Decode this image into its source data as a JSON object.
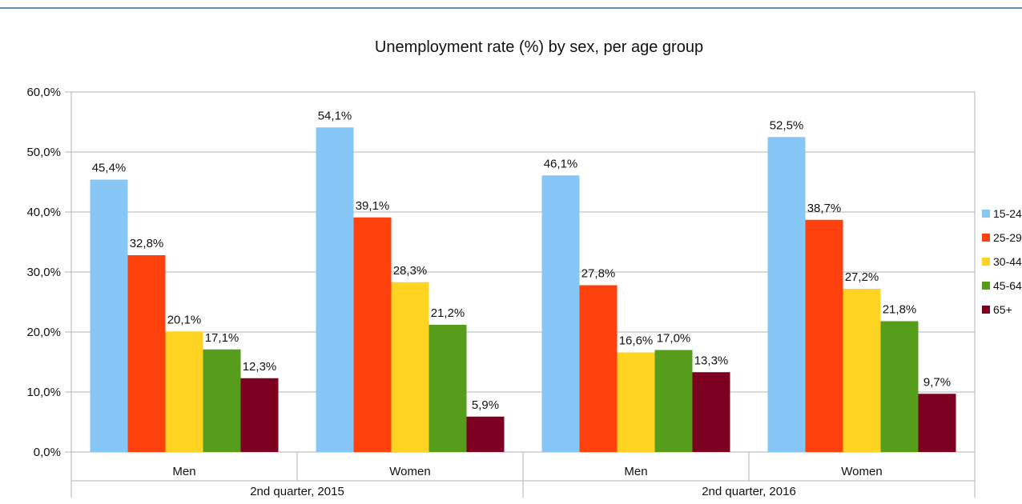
{
  "chart_data": {
    "type": "bar",
    "title": "Unemployment rate (%) by sex, per age group",
    "groups": [
      {
        "label": "2nd quarter, 2015",
        "categories": [
          "Men",
          "Women"
        ]
      },
      {
        "label": "2nd quarter, 2016",
        "categories": [
          "Men",
          "Women"
        ]
      }
    ],
    "categories": [
      "Men",
      "Women",
      "Men",
      "Women"
    ],
    "series": [
      {
        "name": "15-24",
        "color": "#87c7f6",
        "values": [
          45.4,
          54.1,
          46.1,
          52.5
        ],
        "labels": [
          "45,4%",
          "54,1%",
          "46,1%",
          "52,5%"
        ]
      },
      {
        "name": "25-29",
        "color": "#ff410d",
        "values": [
          32.8,
          39.1,
          27.8,
          38.7
        ],
        "labels": [
          "32,8%",
          "39,1%",
          "27,8%",
          "38,7%"
        ]
      },
      {
        "name": "30-44",
        "color": "#ffd321",
        "values": [
          20.1,
          28.3,
          16.6,
          27.2
        ],
        "labels": [
          "20,1%",
          "28,3%",
          "16,6%",
          "27,2%"
        ]
      },
      {
        "name": "45-64",
        "color": "#579d1c",
        "values": [
          17.1,
          21.2,
          17.0,
          21.8
        ],
        "labels": [
          "17,1%",
          "21,2%",
          "17,0%",
          "21,8%"
        ]
      },
      {
        "name": "65+",
        "color": "#7e0021",
        "values": [
          12.3,
          5.9,
          13.3,
          9.7
        ],
        "labels": [
          "12,3%",
          "5,9%",
          "13,3%",
          "9,7%"
        ]
      }
    ],
    "ylim": [
      0,
      60
    ],
    "yticks": [
      0,
      10,
      20,
      30,
      40,
      50,
      60
    ],
    "ytick_labels": [
      "0,0%",
      "10,0%",
      "20,0%",
      "30,0%",
      "40,0%",
      "50,0%",
      "60,0%"
    ],
    "grid": true,
    "legend_position": "right"
  }
}
